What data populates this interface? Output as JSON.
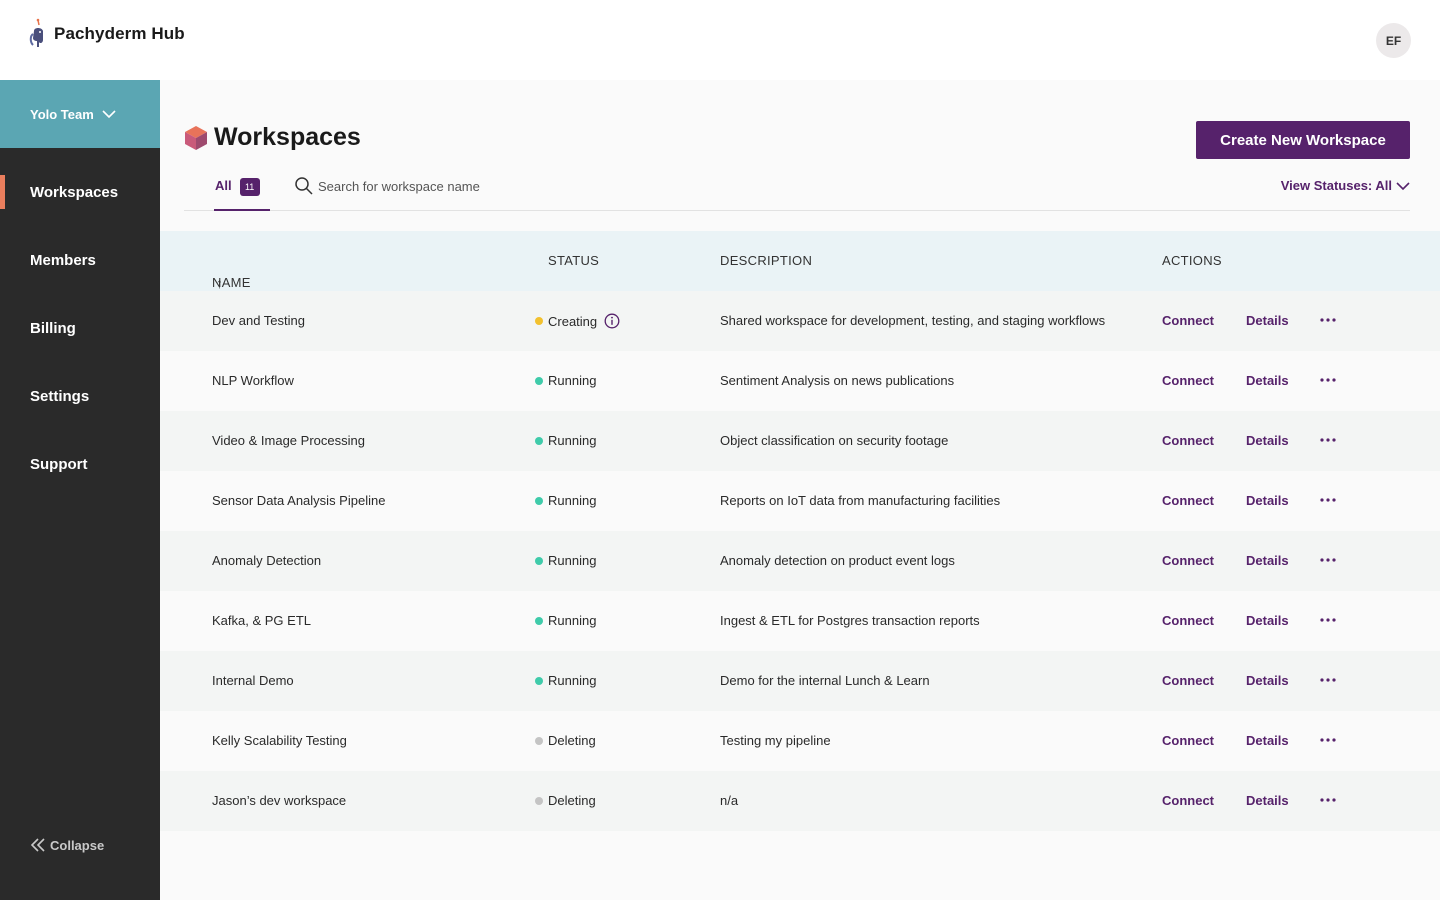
{
  "app": {
    "name": "Pachyderm Hub",
    "user_initials": "EF"
  },
  "sidebar": {
    "team": "Yolo Team",
    "items": [
      {
        "label": "Workspaces",
        "active": true
      },
      {
        "label": "Members",
        "active": false
      },
      {
        "label": "Billing",
        "active": false
      },
      {
        "label": "Settings",
        "active": false
      },
      {
        "label": "Support",
        "active": false
      }
    ],
    "collapse_label": "Collapse"
  },
  "page": {
    "title": "Workspaces",
    "create_button": "Create New Workspace",
    "tab_all_label": "All",
    "tab_all_count": "11",
    "search_placeholder": "Search for workspace name",
    "view_statuses": "View Statuses: All"
  },
  "table": {
    "columns": {
      "name": "NAME",
      "status": "STATUS",
      "description": "DESCRIPTION",
      "actions": "ACTIONS"
    },
    "connect_label": "Connect",
    "details_label": "Details",
    "status_colors": {
      "Creating": "#f2c12e",
      "Running": "#3fcbaa",
      "Deleting": "#c4c4c4"
    },
    "rows": [
      {
        "name": "Dev and Testing",
        "status": "Creating",
        "description": "Shared workspace for development, testing, and staging workflows",
        "info": true
      },
      {
        "name": "NLP Workflow",
        "status": "Running",
        "description": "Sentiment Analysis on news publications",
        "info": false
      },
      {
        "name": "Video & Image Processing",
        "status": "Running",
        "description": "Object classification on security footage",
        "info": false
      },
      {
        "name": "Sensor Data Analysis Pipeline",
        "status": "Running",
        "description": "Reports on IoT data from manufacturing facilities",
        "info": false
      },
      {
        "name": "Anomaly Detection",
        "status": "Running",
        "description": "Anomaly detection on product event logs",
        "info": false
      },
      {
        "name": "Kafka, & PG ETL",
        "status": "Running",
        "description": "Ingest & ETL for Postgres transaction reports",
        "info": false
      },
      {
        "name": "Internal Demo",
        "status": "Running",
        "description": "Demo for the internal Lunch & Learn",
        "info": false
      },
      {
        "name": "Kelly Scalability Testing",
        "status": "Deleting",
        "description": "Testing my pipeline",
        "info": false
      },
      {
        "name": "Jason’s dev workspace",
        "status": "Deleting",
        "description": "n/a",
        "info": false
      }
    ]
  },
  "colors": {
    "brand_purple": "#56226b",
    "team_teal": "#5ba6b3",
    "sidebar_bg": "#2a2a2a",
    "active_marker": "#ea7e5d"
  }
}
